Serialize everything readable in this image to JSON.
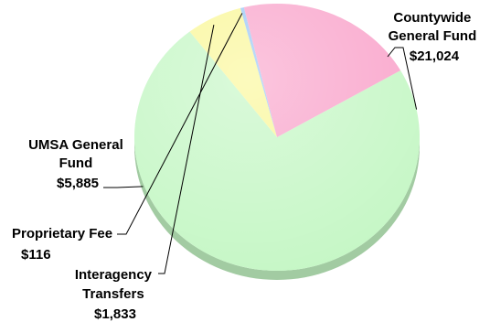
{
  "chart_data": {
    "type": "pie",
    "title": "",
    "slices": [
      {
        "label_lines": [
          "Countywide",
          "General Fund"
        ],
        "value_label": "$21,024",
        "value": 21024,
        "color": "#c6f7c6"
      },
      {
        "label_lines": [
          "Interagency",
          "Transfers"
        ],
        "value_label": "$1,833",
        "value": 1833,
        "color": "#faf79a"
      },
      {
        "label_lines": [
          "Proprietary Fee"
        ],
        "value_label": "$116",
        "value": 116,
        "color": "#9cc8f6"
      },
      {
        "label_lines": [
          "UMSA General",
          "Fund"
        ],
        "value_label": "$5,885",
        "value": 5885,
        "color": "#f9a6cc"
      }
    ]
  }
}
